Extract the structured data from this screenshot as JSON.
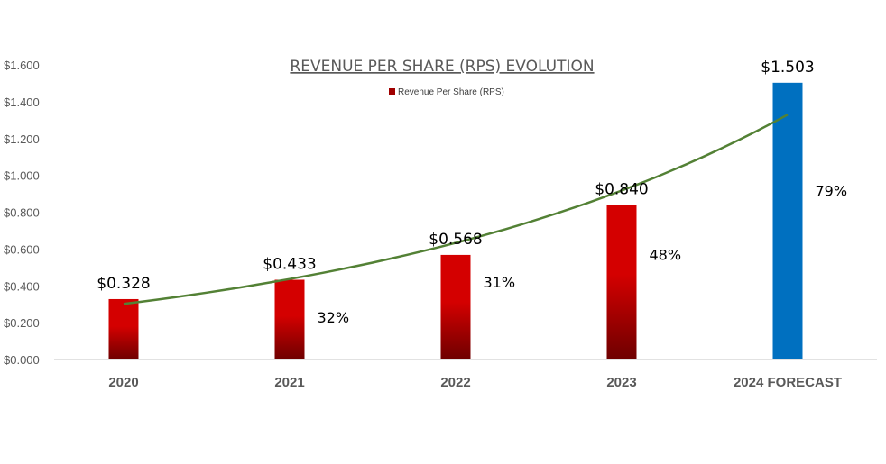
{
  "chart_data": {
    "type": "bar",
    "title": "REVENUE PER SHARE (RPS) EVOLUTION",
    "xlabel": "",
    "ylabel": "",
    "categories": [
      "2020",
      "2021",
      "2022",
      "2023",
      "2024 FORECAST"
    ],
    "series": [
      {
        "name": "Revenue Per Share (RPS)",
        "values": [
          0.328,
          0.433,
          0.568,
          0.84,
          1.503
        ],
        "data_labels": [
          "$0.328",
          "$0.433",
          "$0.568",
          "$0.840",
          "$1.503"
        ],
        "growth_labels": [
          "",
          "32%",
          "31%",
          "48%",
          "79%"
        ]
      }
    ],
    "ylim": [
      0,
      1.6
    ],
    "yticks": [
      "$0.000",
      "$0.200",
      "$0.400",
      "$0.600",
      "$0.800",
      "$1.000",
      "$1.200",
      "$1.400",
      "$1.600"
    ],
    "grid": false,
    "legend": "top-center",
    "trendline": "exponential",
    "colors": {
      "bar_top": "#d40000",
      "bar_bottom": "#6e0000",
      "forecast_bar": "#0070c0",
      "trendline": "#538135",
      "legend_marker": "#a00000",
      "axis": "#d9d9d9"
    }
  }
}
